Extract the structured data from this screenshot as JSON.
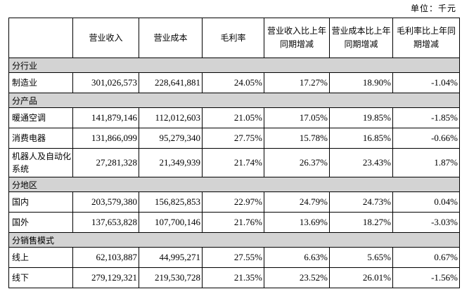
{
  "unit_label": "单位：千元",
  "table": {
    "columns": [
      "",
      "营业收入",
      "营业成本",
      "毛利率",
      "营业收入比上年同期增减",
      "营业成本比上年同期增减",
      "毛利率比上年同期增减"
    ],
    "section_bg": "#d3d3d3",
    "sections": [
      {
        "header": "分行业",
        "rows": [
          {
            "label": "制造业",
            "values": [
              "301,026,573",
              "228,641,881",
              "24.05%",
              "17.27%",
              "18.90%",
              "-1.04%"
            ]
          }
        ]
      },
      {
        "header": "分产品",
        "rows": [
          {
            "label": "暖通空调",
            "values": [
              "141,879,146",
              "112,012,603",
              "21.05%",
              "17.05%",
              "19.85%",
              "-1.85%"
            ]
          },
          {
            "label": "消费电器",
            "values": [
              "131,866,099",
              "95,279,340",
              "27.75%",
              "15.78%",
              "16.85%",
              "-0.66%"
            ]
          },
          {
            "label": "机器人及自动化系统",
            "values": [
              "27,281,328",
              "21,349,939",
              "21.74%",
              "26.37%",
              "23.43%",
              "1.87%"
            ]
          }
        ]
      },
      {
        "header": "分地区",
        "rows": [
          {
            "label": "国内",
            "values": [
              "203,579,380",
              "156,825,853",
              "22.97%",
              "24.79%",
              "24.73%",
              "0.04%"
            ]
          },
          {
            "label": "国外",
            "values": [
              "137,653,828",
              "107,700,146",
              "21.76%",
              "13.69%",
              "18.27%",
              "-3.03%"
            ]
          }
        ]
      },
      {
        "header": "分销售模式",
        "rows": [
          {
            "label": "线上",
            "values": [
              "62,103,887",
              "44,995,271",
              "27.55%",
              "6.63%",
              "5.65%",
              "0.67%"
            ]
          },
          {
            "label": "线下",
            "values": [
              "279,129,321",
              "219,530,728",
              "21.35%",
              "23.52%",
              "26.01%",
              "-1.56%"
            ]
          }
        ]
      }
    ]
  }
}
